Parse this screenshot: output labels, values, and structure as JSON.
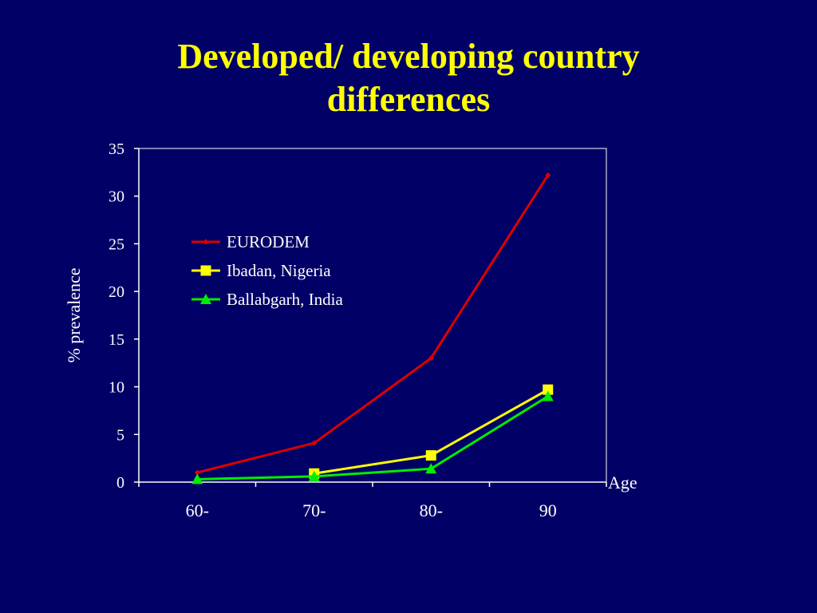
{
  "slide": {
    "title_line1": "Developed/ developing country",
    "title_line2": "differences",
    "background_color": "#000066",
    "title_color": "#ffff00"
  },
  "chart_data": {
    "type": "line",
    "title": "Developed/ developing country differences",
    "xlabel": "Age",
    "ylabel": "% prevalence",
    "categories": [
      "60-",
      "70-",
      "80-",
      "90"
    ],
    "ylim": [
      0,
      35
    ],
    "yticks": [
      0,
      5,
      10,
      15,
      20,
      25,
      30,
      35
    ],
    "grid": false,
    "legend_position": "upper-left inside plot",
    "series": [
      {
        "name": "EURODEM",
        "values": [
          1.0,
          4.1,
          13.0,
          32.2
        ],
        "color": "#dd0000",
        "marker": "diamond"
      },
      {
        "name": "Ibadan, Nigeria",
        "values": [
          null,
          0.9,
          2.8,
          9.7
        ],
        "color": "#ffff00",
        "marker": "square"
      },
      {
        "name": "Ballabgarh, India",
        "values": [
          0.3,
          0.6,
          1.4,
          9.0
        ],
        "color": "#00ee00",
        "marker": "triangle"
      }
    ]
  }
}
